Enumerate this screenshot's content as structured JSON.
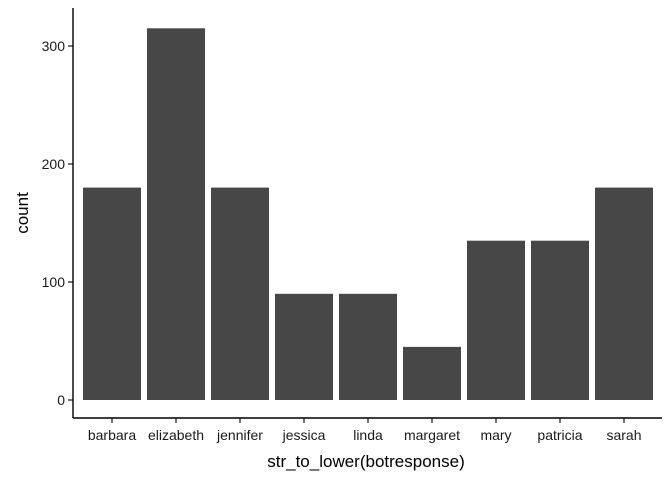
{
  "chart_data": {
    "type": "bar",
    "categories": [
      "barbara",
      "elizabeth",
      "jennifer",
      "jessica",
      "linda",
      "margaret",
      "mary",
      "patricia",
      "sarah"
    ],
    "values": [
      180,
      315,
      180,
      90,
      90,
      45,
      135,
      135,
      180
    ],
    "title": "",
    "xlabel": "str_to_lower(botresponse)",
    "ylabel": "count",
    "ylim": [
      0,
      333
    ],
    "yticks": [
      0,
      100,
      200,
      300
    ],
    "grid": false,
    "legend": "none",
    "bar_color": "#474747"
  }
}
